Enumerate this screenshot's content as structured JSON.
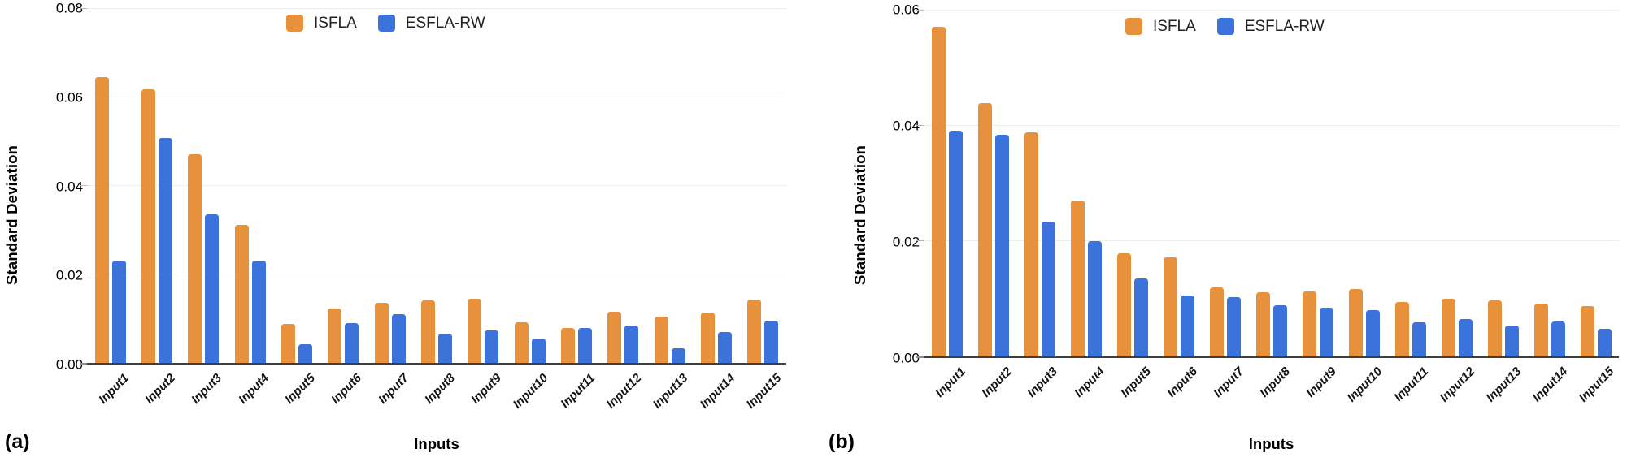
{
  "figure": {
    "background": "#ffffff",
    "axis_line_color": "#3f3f3f",
    "gridline_color": "#ededed",
    "series_colors": {
      "ISFLA": "#E8913C",
      "ESFLA-RW": "#3C73DB"
    }
  },
  "chart_data": [
    {
      "type": "bar",
      "panel_label": "(a)",
      "xlabel": "Inputs",
      "ylabel": "Standard Deviation",
      "ylim": [
        0,
        0.08
      ],
      "yticks": [
        0,
        0.02,
        0.04,
        0.06,
        0.08
      ],
      "ytick_labels": [
        "0.00",
        "0.02",
        "0.04",
        "0.06",
        "0.08"
      ],
      "grid": true,
      "legend_position": "top",
      "categories": [
        "Input1",
        "Input2",
        "Input3",
        "Input4",
        "Input5",
        "Input6",
        "Input7",
        "Input8",
        "Input9",
        "Input10",
        "Input11",
        "Input12",
        "Input13",
        "Input14",
        "Input15"
      ],
      "series": [
        {
          "name": "ISFLA",
          "color": "#E8913C",
          "values": [
            0.0645,
            0.0617,
            0.047,
            0.0311,
            0.0088,
            0.0122,
            0.0135,
            0.0141,
            0.0144,
            0.0092,
            0.0078,
            0.0116,
            0.0105,
            0.0114,
            0.0143
          ]
        },
        {
          "name": "ESFLA-RW",
          "color": "#3C73DB",
          "values": [
            0.023,
            0.0508,
            0.0335,
            0.023,
            0.0043,
            0.009,
            0.0109,
            0.0066,
            0.0074,
            0.0055,
            0.0079,
            0.0084,
            0.0033,
            0.0069,
            0.0096
          ]
        }
      ]
    },
    {
      "type": "bar",
      "panel_label": "(b)",
      "xlabel": "Inputs",
      "ylabel": "Standard Deviation",
      "ylim": [
        0,
        0.06
      ],
      "yticks": [
        0,
        0.02,
        0.04,
        0.06
      ],
      "ytick_labels": [
        "0.00",
        "0.02",
        "0.04",
        "0.06"
      ],
      "grid": true,
      "legend_position": "top",
      "categories": [
        "Input1",
        "Input2",
        "Input3",
        "Input4",
        "Input5",
        "Input6",
        "Input7",
        "Input8",
        "Input9",
        "Input10",
        "Input11",
        "Input12",
        "Input13",
        "Input14",
        "Input15"
      ],
      "series": [
        {
          "name": "ISFLA",
          "color": "#E8913C",
          "values": [
            0.057,
            0.0438,
            0.0388,
            0.027,
            0.0179,
            0.0172,
            0.012,
            0.0111,
            0.0113,
            0.0117,
            0.0094,
            0.01,
            0.0097,
            0.0092,
            0.0087
          ]
        },
        {
          "name": "ESFLA-RW",
          "color": "#3C73DB",
          "values": [
            0.039,
            0.0384,
            0.0233,
            0.0199,
            0.0135,
            0.0106,
            0.0103,
            0.0089,
            0.0085,
            0.008,
            0.0059,
            0.0064,
            0.0054,
            0.0061,
            0.0048
          ]
        }
      ]
    }
  ]
}
